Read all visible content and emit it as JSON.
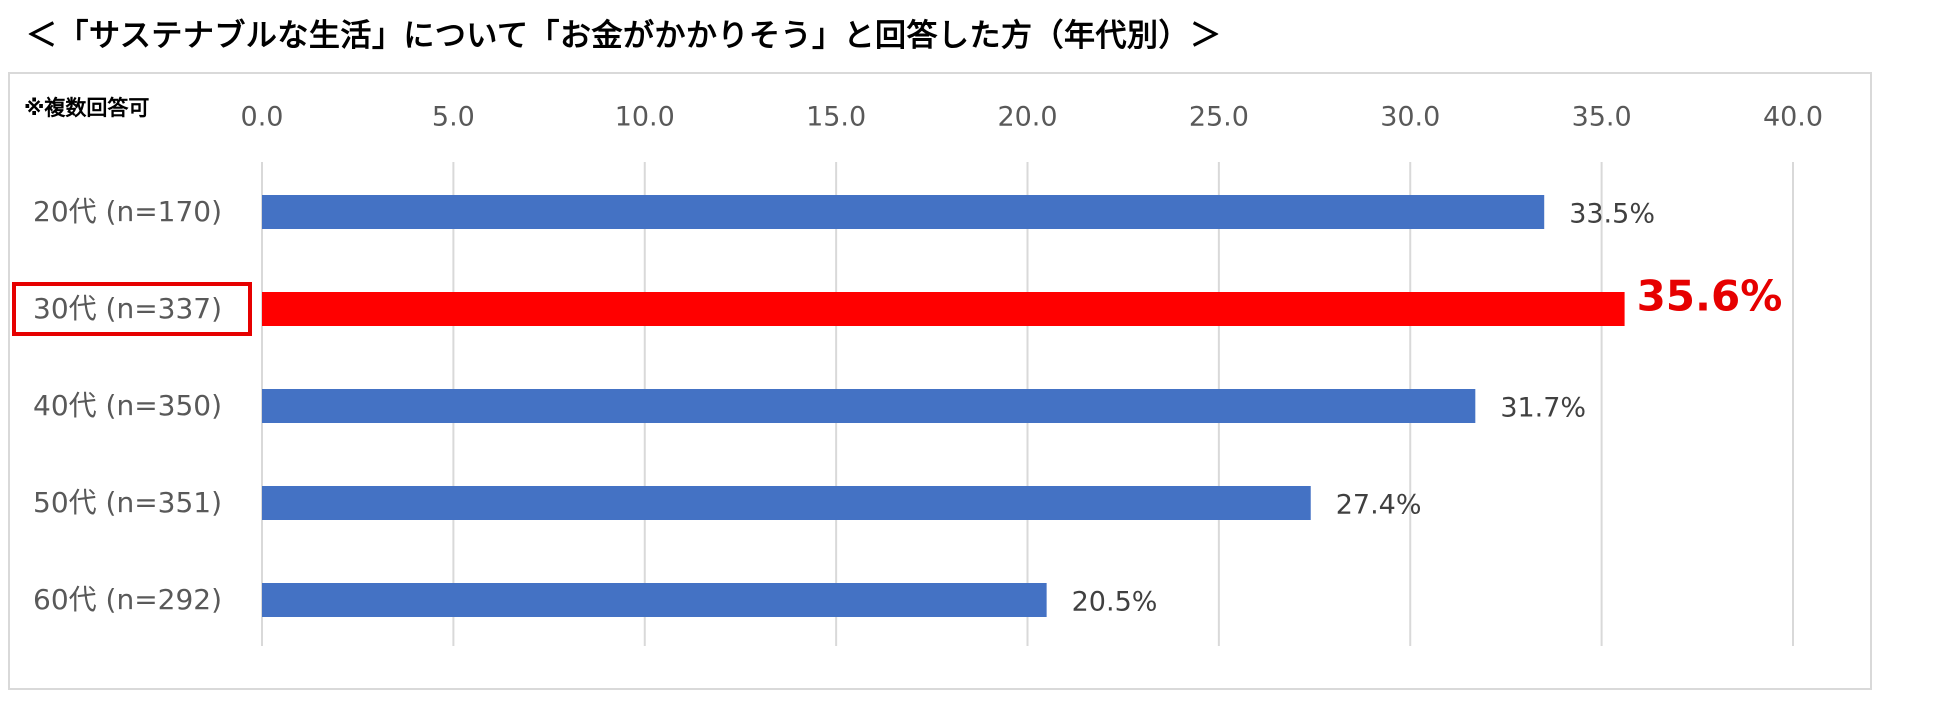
{
  "title": "＜「サステナブルな生活」について「お金がかかりそう」と回答した方（年代別）＞",
  "note": "※複数回答可",
  "colors": {
    "bar": "#4472c4",
    "highlight": "#ff0000",
    "highlight_label": "#e60000",
    "grid": "#d9d9d9",
    "frame": "#d9d9d9"
  },
  "chart_data": {
    "type": "bar",
    "orientation": "horizontal",
    "categories": [
      "20代 (n=170)",
      "30代 (n=337)",
      "40代 (n=350)",
      "50代 (n=351)",
      "60代 (n=292)"
    ],
    "values": [
      33.5,
      35.6,
      31.7,
      27.4,
      20.5
    ],
    "value_labels": [
      "33.5%",
      "35.6%",
      "31.7%",
      "27.4%",
      "20.5%"
    ],
    "highlight_index": 1,
    "xlim": [
      0,
      40
    ],
    "x_ticks": [
      0,
      5,
      10,
      15,
      20,
      25,
      30,
      35,
      40
    ],
    "x_tick_labels": [
      "0.0",
      "5.0",
      "10.0",
      "15.0",
      "20.0",
      "25.0",
      "30.0",
      "35.0",
      "40.0"
    ],
    "x_axis_position": "top",
    "grid": true,
    "legend": "none"
  }
}
